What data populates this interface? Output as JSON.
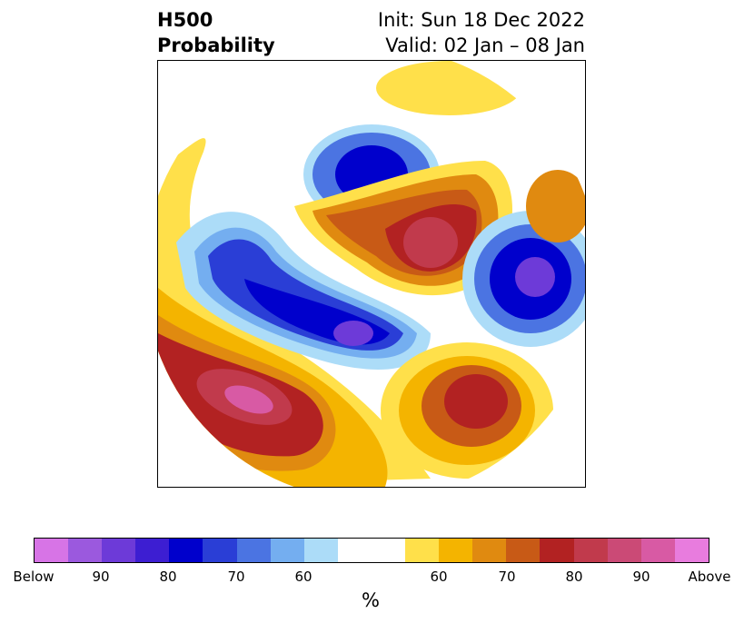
{
  "title": {
    "variable": "H500",
    "product": "Probability",
    "init": "Init: Sun 18 Dec 2022",
    "valid": "Valid: 02 Jan – 08 Jan"
  },
  "map": {
    "projection": "polar stereographic (North Pole)",
    "features": [
      {
        "name": "above-anomaly-north-pacific-eastern",
        "sign": "above",
        "peak": "Above"
      },
      {
        "name": "above-anomaly-arctic-siberia",
        "sign": "above",
        "peak": 85
      },
      {
        "name": "above-anomaly-north-atlantic-east-of-canada",
        "sign": "above",
        "peak": 80
      },
      {
        "name": "below-anomaly-northwest-canada-pacific",
        "sign": "below",
        "peak": 85
      },
      {
        "name": "below-anomaly-scandinavia-northern-europe",
        "sign": "below",
        "peak": "Below"
      },
      {
        "name": "below-anomaly-eastern-siberia",
        "sign": "below",
        "peak": 80
      },
      {
        "name": "above-anomaly-beaufort-chukchi",
        "sign": "above",
        "peak": 65
      },
      {
        "name": "above-anomaly-central-asia",
        "sign": "above",
        "peak": 75
      }
    ]
  },
  "colorbar": {
    "colors": [
      "#d774e6",
      "#9b59de",
      "#6d3ad8",
      "#3d1ed2",
      "#0000cc",
      "#2a3ed6",
      "#4b74e2",
      "#74aef0",
      "#acdcf8",
      "#ffffff",
      "#ffe04a",
      "#f4b400",
      "#e08a10",
      "#c85a16",
      "#b22222",
      "#c13a4c",
      "#cb4a76",
      "#d85aa4",
      "#e87cde"
    ],
    "tick_labels": [
      "Below",
      "90",
      "80",
      "70",
      "60",
      "60",
      "70",
      "80",
      "90",
      "Above"
    ],
    "unit": "%"
  }
}
